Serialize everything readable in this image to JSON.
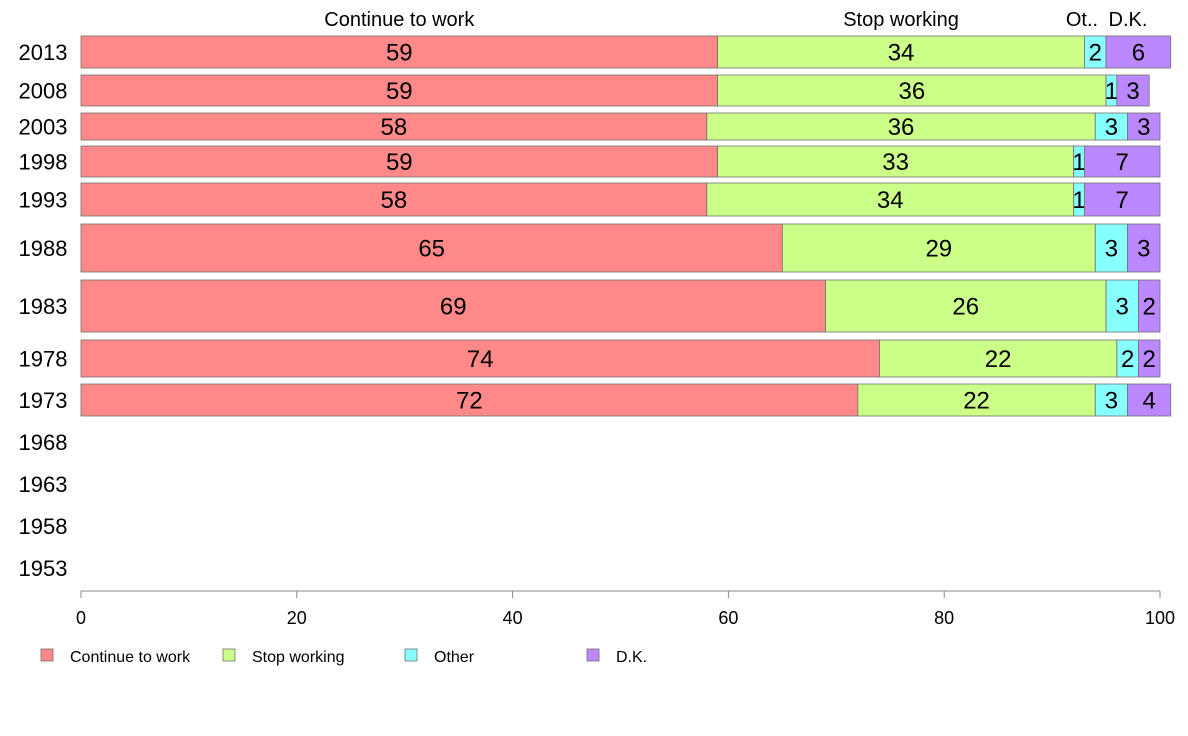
{
  "chart_data": {
    "type": "bar",
    "orientation": "horizontal",
    "stacked": true,
    "column_headers": [
      "Continue to work",
      "Stop working",
      "Ot..",
      "D.K."
    ],
    "categories": [
      "2013",
      "2008",
      "2003",
      "1998",
      "1993",
      "1988",
      "1983",
      "1978",
      "1973",
      "1968",
      "1963",
      "1958",
      "1953"
    ],
    "series": [
      {
        "name": "Continue to work",
        "color": "#ff8888",
        "values": [
          59,
          59,
          58,
          59,
          58,
          65,
          69,
          74,
          72,
          null,
          null,
          null,
          null
        ]
      },
      {
        "name": "Stop working",
        "color": "#ccff88",
        "values": [
          34,
          36,
          36,
          33,
          34,
          29,
          26,
          22,
          22,
          null,
          null,
          null,
          null
        ]
      },
      {
        "name": "Other",
        "color": "#88ffff",
        "values": [
          2,
          1,
          3,
          1,
          1,
          3,
          3,
          2,
          3,
          null,
          null,
          null,
          null
        ]
      },
      {
        "name": "D.K.",
        "color": "#bb88ff",
        "values": [
          6,
          3,
          3,
          7,
          7,
          3,
          2,
          2,
          4,
          null,
          null,
          null,
          null
        ]
      }
    ],
    "xlim": [
      0,
      100
    ],
    "xticks": [
      "0",
      "20",
      "40",
      "60",
      "80",
      "100"
    ],
    "legend_position": "bottom-left",
    "grid": false
  }
}
